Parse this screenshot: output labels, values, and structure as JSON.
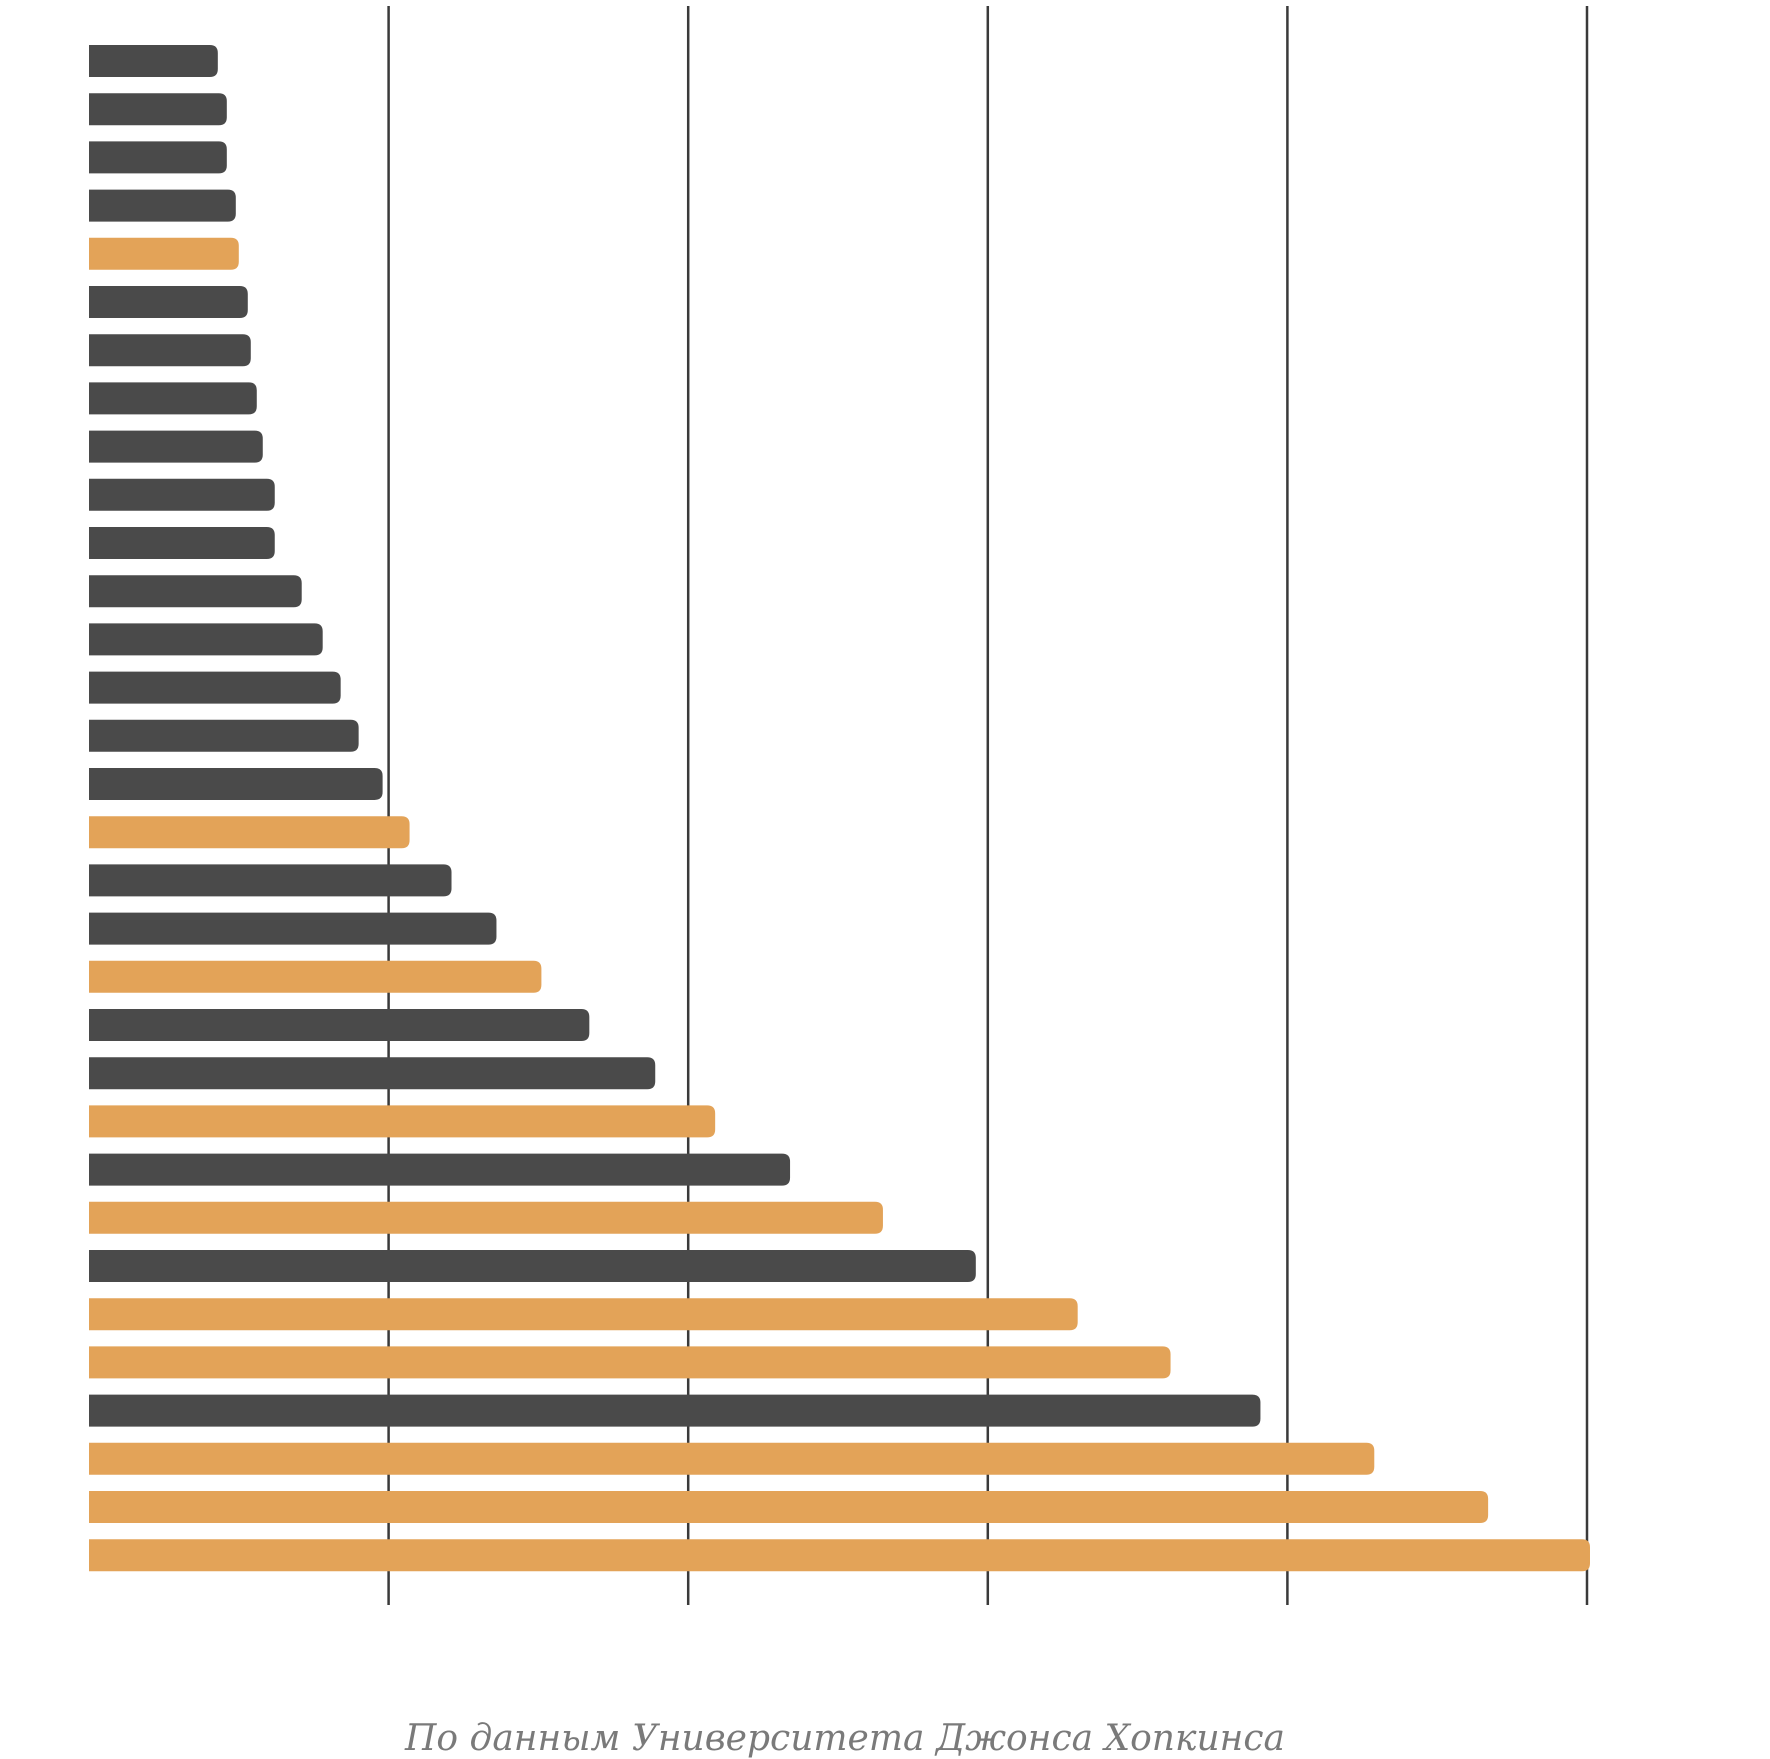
{
  "chart_data": {
    "type": "bar",
    "orientation": "horizontal",
    "title": "",
    "xlabel": "",
    "ylabel": "",
    "xlim": [
      0,
      5
    ],
    "grid": true,
    "gridlines_x": [
      1,
      2,
      3,
      4,
      5
    ],
    "colors": {
      "default": "#4a4a4a",
      "highlight": "#e3a358",
      "grid": "#3a3a3a"
    },
    "values": [
      0.43,
      0.46,
      0.46,
      0.49,
      0.5,
      0.53,
      0.54,
      0.56,
      0.58,
      0.62,
      0.62,
      0.71,
      0.78,
      0.84,
      0.9,
      0.98,
      1.07,
      1.21,
      1.36,
      1.51,
      1.67,
      1.89,
      2.09,
      2.34,
      2.65,
      2.96,
      3.3,
      3.61,
      3.91,
      4.29,
      4.67,
      5.01
    ],
    "highlighted": [
      false,
      false,
      false,
      false,
      true,
      false,
      false,
      false,
      false,
      false,
      false,
      false,
      false,
      false,
      false,
      false,
      true,
      false,
      false,
      true,
      false,
      false,
      true,
      false,
      true,
      false,
      true,
      true,
      false,
      true,
      true,
      true
    ]
  },
  "source": "По данным Университета Джонса Хопкинса"
}
